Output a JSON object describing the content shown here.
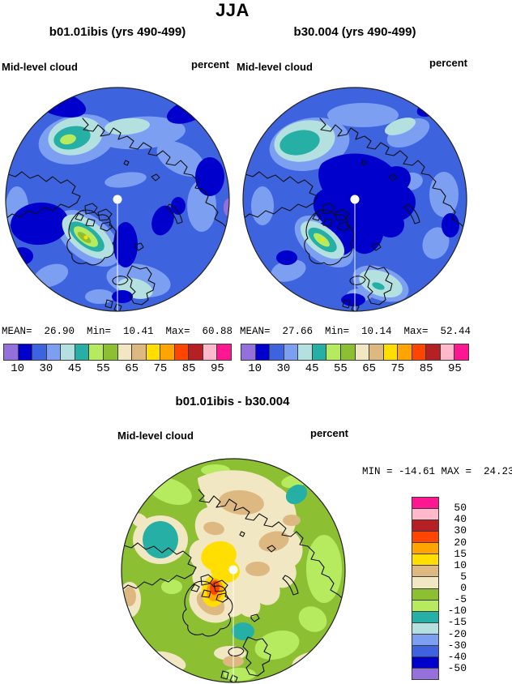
{
  "page": {
    "title": "JJA"
  },
  "panels": [
    {
      "title": "b01.01ibis (yrs 490-499)",
      "field": "Mid-level cloud",
      "units": "percent",
      "stats_text": "MEAN=  26.90  Min=  10.41  Max=  60.88"
    },
    {
      "title": "b30.004 (yrs 490-499)",
      "field": "Mid-level cloud",
      "units": "percent",
      "stats_text": "MEAN=  27.66  Min=  10.14  Max=  52.44"
    }
  ],
  "diff": {
    "title": "b01.01ibis - b30.004",
    "field": "Mid-level cloud",
    "units": "percent",
    "minmax_text": "MIN = -14.61 MAX =  24.23"
  },
  "palette": {
    "purple": "#9470DB",
    "navy": "#0000CC",
    "royal": "#3D63DF",
    "cornflower": "#7D9FF1",
    "pale_cyan": "#B4E0E0",
    "teal": "#25AFA5",
    "light_green": "#B6EB5F",
    "green": "#8CC032",
    "cream": "#F2E7C3",
    "tan": "#DDB981",
    "gold": "#FFDE00",
    "orange": "#FFA400",
    "orange_red": "#FF4500",
    "dark_red": "#B52025",
    "pink": "#FFB9CA",
    "magenta": "#FF1792"
  },
  "colorbar": {
    "colors": [
      "#9470DB",
      "#0000CC",
      "#3D63DF",
      "#7D9FF1",
      "#B4E0E0",
      "#25AFA5",
      "#B6EB5F",
      "#8CC032",
      "#F2E7C3",
      "#DDB981",
      "#FFDE00",
      "#FFA400",
      "#FF4500",
      "#B52025",
      "#FFB9CA",
      "#FF1792"
    ],
    "ticks": [
      "10",
      "30",
      "45",
      "55",
      "65",
      "75",
      "85",
      "95"
    ]
  },
  "diff_colorbar": {
    "colors": [
      "#FF1792",
      "#FFB9CA",
      "#B52025",
      "#FF4500",
      "#FFA400",
      "#FFDE00",
      "#DDB981",
      "#F2E7C3",
      "#8CC032",
      "#B6EB5F",
      "#25AFA5",
      "#B4E0E0",
      "#7D9FF1",
      "#3D63DF",
      "#0000CC",
      "#9470DB"
    ],
    "ticks": [
      "50",
      "40",
      "30",
      "20",
      "15",
      "10",
      "5",
      "0",
      "-5",
      "-10",
      "-15",
      "-20",
      "-30",
      "-40",
      "-50"
    ]
  },
  "chart_data": [
    {
      "type": "filled_contour_polar_map",
      "season": "JJA",
      "title": "b01.01ibis (yrs 490-499)",
      "variable": "Mid-level cloud",
      "units": "percent",
      "projection": "north polar stereographic",
      "stats": {
        "mean": 26.9,
        "min": 10.41,
        "max": 60.88
      },
      "contour_levels": [
        10,
        20,
        30,
        40,
        45,
        50,
        55,
        60,
        65,
        70,
        75,
        80,
        85,
        90,
        95
      ],
      "fill_colors": [
        "#9470DB",
        "#0000CC",
        "#3D63DF",
        "#7D9FF1",
        "#B4E0E0",
        "#25AFA5",
        "#B6EB5F",
        "#8CC032",
        "#F2E7C3",
        "#DDB981",
        "#FFDE00",
        "#FFA400",
        "#FF4500",
        "#B52025",
        "#FFB9CA",
        "#FF1792"
      ],
      "notable_features": [
        "field mostly 20-30% (royal blue) with 10-20% (navy) patches over Hudson Bay, top-left and right sectors",
        "local maxima 45-55% (teal/green cores) over Alaska (upper-left) and southern Greenland (lower-centre-left)",
        "lighter 30-40% bands north of Siberia and over Scandinavia",
        "white pole hole at centre"
      ]
    },
    {
      "type": "filled_contour_polar_map",
      "season": "JJA",
      "title": "b30.004 (yrs 490-499)",
      "variable": "Mid-level cloud",
      "units": "percent",
      "projection": "north polar stereographic",
      "stats": {
        "mean": 27.66,
        "min": 10.14,
        "max": 52.44
      },
      "contour_levels": [
        10,
        20,
        30,
        40,
        45,
        50,
        55,
        60,
        65,
        70,
        75,
        80,
        85,
        90,
        95
      ],
      "fill_colors": [
        "#9470DB",
        "#0000CC",
        "#3D63DF",
        "#7D9FF1",
        "#B4E0E0",
        "#25AFA5",
        "#B6EB5F",
        "#8CC032",
        "#F2E7C3",
        "#DDB981",
        "#FFDE00",
        "#FFA400",
        "#FF4500",
        "#B52025",
        "#FFB9CA",
        "#FF1792"
      ],
      "notable_features": [
        "large 10-20% (navy) region covering central Arctic Ocean around the pole",
        "40-50% maxima (teal) over Alaska and southern Greenland",
        "40% (pale cyan) patch over Scandinavia",
        "white pole hole at centre"
      ]
    },
    {
      "type": "filled_contour_polar_map_difference",
      "season": "JJA",
      "title": "b01.01ibis - b30.004",
      "variable": "Mid-level cloud",
      "units": "percent",
      "projection": "north polar stereographic",
      "stats": {
        "min": -14.61,
        "max": 24.23
      },
      "contour_levels": [
        -50,
        -40,
        -30,
        -20,
        -15,
        -10,
        -5,
        0,
        5,
        10,
        15,
        20,
        30,
        40,
        50
      ],
      "fill_colors": [
        "#9470DB",
        "#0000CC",
        "#3D63DF",
        "#7D9FF1",
        "#B4E0E0",
        "#25AFA5",
        "#B6EB5F",
        "#8CC032",
        "#F2E7C3",
        "#DDB981",
        "#FFDE00",
        "#FFA400",
        "#FF4500",
        "#B52025",
        "#FFB9CA",
        "#FF1792"
      ],
      "notable_features": [
        "background mostly -5 to 0 (medium green) with -10 to -5 (light green) patches",
        "positive 0-10 (cream/tan) region over central Arctic Ocean",
        "10-15 (yellow) patch beside the pole",
        "15-30 (orange/red) maximum over southern Greenland",
        "-20 to -15 (teal) minima over Beaufort Sea, Taymyr and the Baltic",
        "white pole hole at centre"
      ]
    }
  ]
}
